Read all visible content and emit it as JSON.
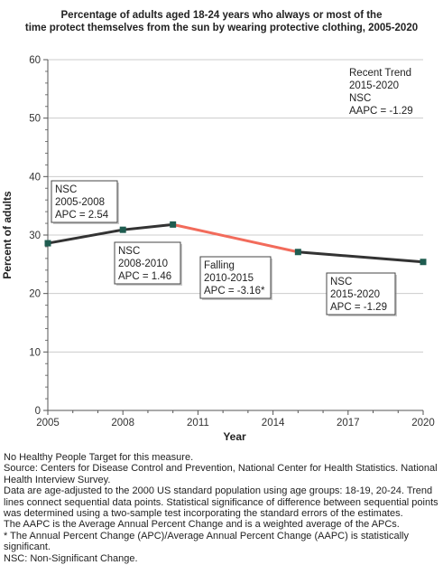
{
  "chart_data": {
    "type": "line",
    "title_lines": [
      "Percentage of adults aged 18-24 years who always or most of the",
      "time protect themselves from the sun by wearing protective clothing, 2005-2020"
    ],
    "xlabel": "Year",
    "ylabel": "Percent of adults",
    "xlim": [
      2005,
      2020
    ],
    "ylim": [
      0,
      60
    ],
    "x_ticks": [
      2005,
      2008,
      2011,
      2014,
      2017,
      2020
    ],
    "y_ticks": [
      0,
      10,
      20,
      30,
      40,
      50,
      60
    ],
    "grid": "horizontal",
    "points": [
      {
        "x": 2005,
        "y": 28.6
      },
      {
        "x": 2008,
        "y": 30.9
      },
      {
        "x": 2010,
        "y": 31.8
      },
      {
        "x": 2015,
        "y": 27.1
      },
      {
        "x": 2020,
        "y": 25.4
      }
    ],
    "segments": [
      {
        "from": 2005,
        "to": 2008,
        "color": "#333333",
        "lines": [
          "NSC",
          "2005-2008",
          "APC =  2.54"
        ]
      },
      {
        "from": 2008,
        "to": 2010,
        "color": "#333333",
        "lines": [
          "NSC",
          "2008-2010",
          "APC =  1.46"
        ]
      },
      {
        "from": 2010,
        "to": 2015,
        "color": "#f26b5b",
        "lines": [
          "Falling",
          "2010-2015",
          "APC = -3.16*"
        ]
      },
      {
        "from": 2015,
        "to": 2020,
        "color": "#333333",
        "lines": [
          "NSC",
          "2015-2020",
          "APC = -1.29"
        ]
      }
    ],
    "recent_trend": {
      "lines": [
        "Recent Trend",
        "2015-2020",
        "NSC",
        "AAPC = -1.29"
      ]
    },
    "colors": {
      "line": "#333333",
      "falling": "#f26b5b",
      "marker": "#1f5c50",
      "grid": "#cccccc"
    }
  },
  "notes": [
    "No Healthy People Target for this measure.",
    "Source: Centers for Disease Control and Prevention, National Center for Health Statistics. National Health Interview Survey.",
    "Data are age-adjusted to the 2000 US standard population using age groups: 18-19, 20-24. Trend lines connect sequential data points. Statistical significance of difference between sequential points was determined using a two-sample test incorporating the standard errors of the estimates.",
    "The AAPC is the Average Annual Percent Change and is a weighted average of the APCs.",
    "* The Annual Percent Change (APC)/Average Annual Percent Change (AAPC) is statistically significant.",
    "NSC: Non-Significant Change."
  ]
}
